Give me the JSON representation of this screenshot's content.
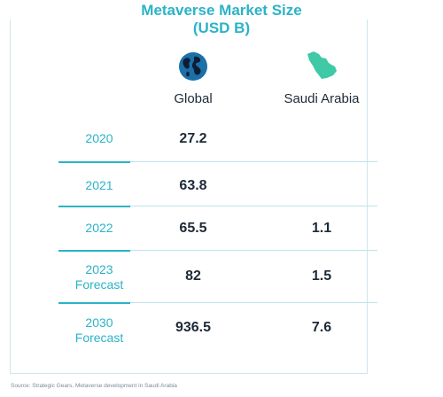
{
  "title_line1": "Metaverse Market Size",
  "title_line2": "(USD B)",
  "columns": {
    "global": "Global",
    "saudi": "Saudi Arabia"
  },
  "icons": {
    "global": "globe-icon",
    "saudi": "saudi-map-icon"
  },
  "colors": {
    "accent": "#2bb3c7",
    "text": "#1e2a38",
    "grid": "#bfe2ea"
  },
  "rows": [
    {
      "year": "2020",
      "sub": "",
      "global": "27.2",
      "saudi": ""
    },
    {
      "year": "2021",
      "sub": "",
      "global": "63.8",
      "saudi": ""
    },
    {
      "year": "2022",
      "sub": "",
      "global": "65.5",
      "saudi": "1.1"
    },
    {
      "year": "2023",
      "sub": "Forecast",
      "global": "82",
      "saudi": "1.5"
    },
    {
      "year": "2030",
      "sub": "Forecast",
      "global": "936.5",
      "saudi": "7.6"
    }
  ],
  "source": "Source: Strategic Gears, Metaverse development in Saudi Arabia",
  "chart_data": {
    "type": "table",
    "title": "Metaverse Market Size (USD B)",
    "columns": [
      "",
      "Global",
      "Saudi Arabia"
    ],
    "rows": [
      [
        "2020",
        27.2,
        null
      ],
      [
        "2021",
        63.8,
        null
      ],
      [
        "2022",
        65.5,
        1.1
      ],
      [
        "2023 Forecast",
        82,
        1.5
      ],
      [
        "2030 Forecast",
        936.5,
        7.6
      ]
    ]
  }
}
